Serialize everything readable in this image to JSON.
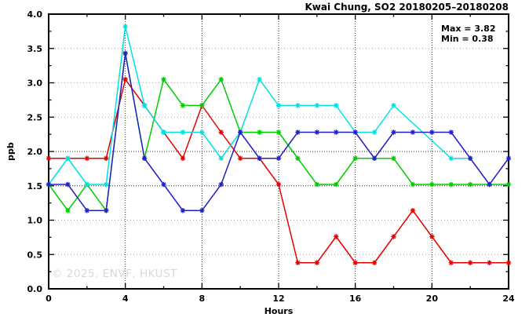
{
  "title": "Kwai Chung, SO2 20180205–20180208",
  "annotation": {
    "max_label": "Max = 3.82",
    "min_label": "Min = 0.38"
  },
  "watermark": "© 2025, ENVF, HKUST",
  "chart_data": {
    "type": "line",
    "title": "Kwai Chung, SO2 20180205–20180208",
    "xlabel": "Hours",
    "ylabel": "ppb",
    "xlim": [
      0,
      24
    ],
    "ylim": [
      0.0,
      4.0
    ],
    "grid": true,
    "legend_position": "none",
    "max": 3.82,
    "min": 0.38,
    "x_tick_labels": [
      "0",
      "4",
      "8",
      "12",
      "16",
      "20",
      "24"
    ],
    "x_major_tick_values": [
      0,
      4,
      8,
      12,
      16,
      20,
      24
    ],
    "x_minor_tick_values": [
      2,
      6,
      10,
      14,
      18,
      22
    ],
    "y_tick_labels": [
      "0.0",
      "0.5",
      "1.0",
      "1.5",
      "2.0",
      "2.5",
      "3.0",
      "3.5",
      "4.0"
    ],
    "y_major_tick_values": [
      0,
      0.5,
      1.0,
      1.5,
      2.0,
      2.5,
      3.0,
      3.5,
      4.0
    ],
    "y_minor_tick_values": [
      0.25,
      0.75,
      1.25,
      1.75,
      2.25,
      2.75,
      3.25,
      3.75
    ],
    "x": [
      0,
      1,
      2,
      3,
      4,
      5,
      6,
      7,
      8,
      9,
      10,
      11,
      12,
      13,
      14,
      15,
      16,
      17,
      18,
      19,
      20,
      21,
      22,
      23,
      24
    ],
    "series": [
      {
        "name": "series-1",
        "color": "#e60000",
        "marker": "asterisk",
        "values": [
          1.9,
          1.9,
          1.9,
          1.9,
          3.05,
          2.67,
          2.28,
          1.9,
          2.67,
          2.28,
          1.9,
          1.9,
          1.52,
          0.38,
          0.38,
          0.76,
          0.38,
          0.38,
          0.76,
          1.14,
          0.76,
          0.38,
          0.38,
          0.38,
          0.38
        ]
      },
      {
        "name": "series-2",
        "color": "#00cc00",
        "marker": "asterisk",
        "values": [
          1.52,
          1.14,
          1.52,
          1.14,
          3.43,
          1.9,
          3.05,
          2.67,
          2.67,
          3.05,
          2.28,
          2.28,
          2.28,
          1.9,
          1.52,
          1.52,
          1.9,
          1.9,
          1.9,
          1.52,
          1.52,
          1.52,
          1.52,
          1.52,
          1.52
        ]
      },
      {
        "name": "series-3",
        "color": "#00e1e1",
        "marker": "asterisk",
        "values": [
          1.52,
          1.9,
          1.52,
          1.52,
          3.82,
          2.67,
          2.28,
          2.28,
          2.28,
          1.9,
          2.28,
          3.05,
          2.67,
          2.67,
          2.67,
          2.67,
          2.28,
          2.28,
          2.67,
          null,
          null,
          1.9,
          1.9,
          null,
          null
        ]
      },
      {
        "name": "series-4",
        "color": "#2020c8",
        "marker": "asterisk",
        "values": [
          1.52,
          1.52,
          1.14,
          1.14,
          3.43,
          1.9,
          1.52,
          1.14,
          1.14,
          1.52,
          2.28,
          1.9,
          1.9,
          2.28,
          2.28,
          2.28,
          2.28,
          1.9,
          2.28,
          2.28,
          2.28,
          2.28,
          1.9,
          1.52,
          1.9
        ]
      }
    ]
  }
}
